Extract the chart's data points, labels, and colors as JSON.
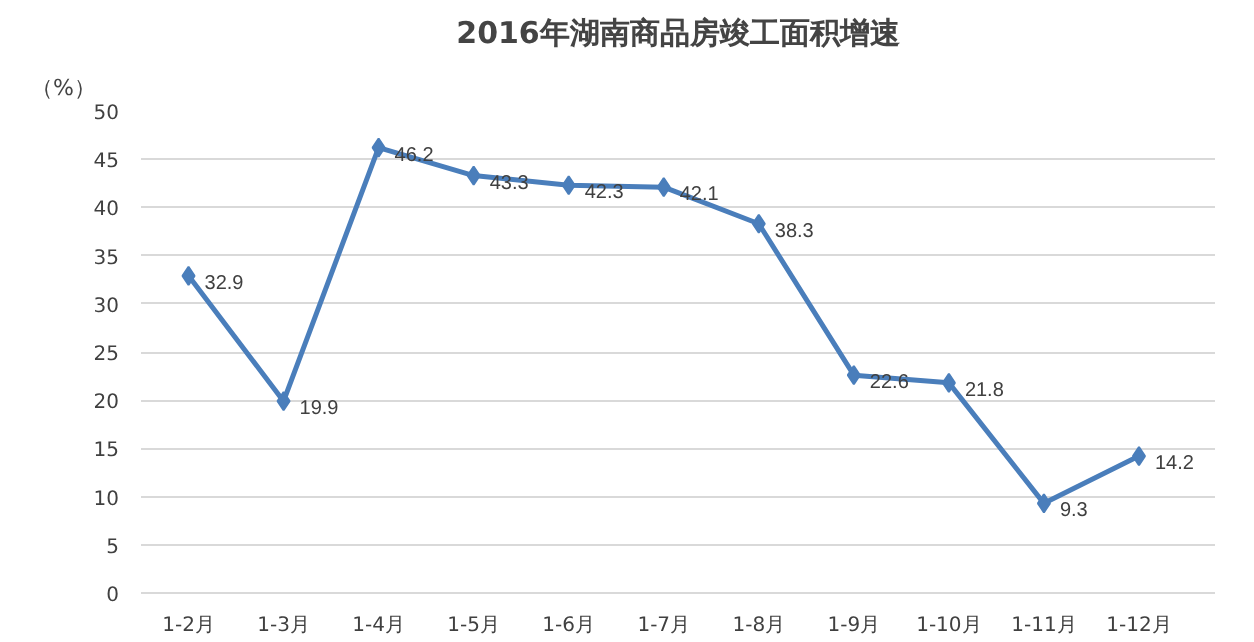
{
  "chart_data": {
    "type": "line",
    "title": "2016年湖南商品房竣工面积增速",
    "ylabel": "（%）",
    "categories": [
      "1-2月",
      "1-3月",
      "1-4月",
      "1-5月",
      "1-6月",
      "1-7月",
      "1-8月",
      "1-9月",
      "1-10月",
      "1-11月",
      "1-12月"
    ],
    "series": [
      {
        "color": "#4a7ebb",
        "values": [
          32.9,
          19.9,
          46.2,
          43.3,
          42.3,
          42.1,
          38.3,
          22.6,
          21.8,
          9.3,
          14.2
        ]
      }
    ],
    "ylim": [
      0,
      50
    ],
    "yticks": [
      0,
      5,
      10,
      15,
      20,
      25,
      30,
      35,
      40,
      45,
      50
    ],
    "grid": "y",
    "marker": "diamond",
    "line_style": "solid",
    "data_labels": true
  }
}
